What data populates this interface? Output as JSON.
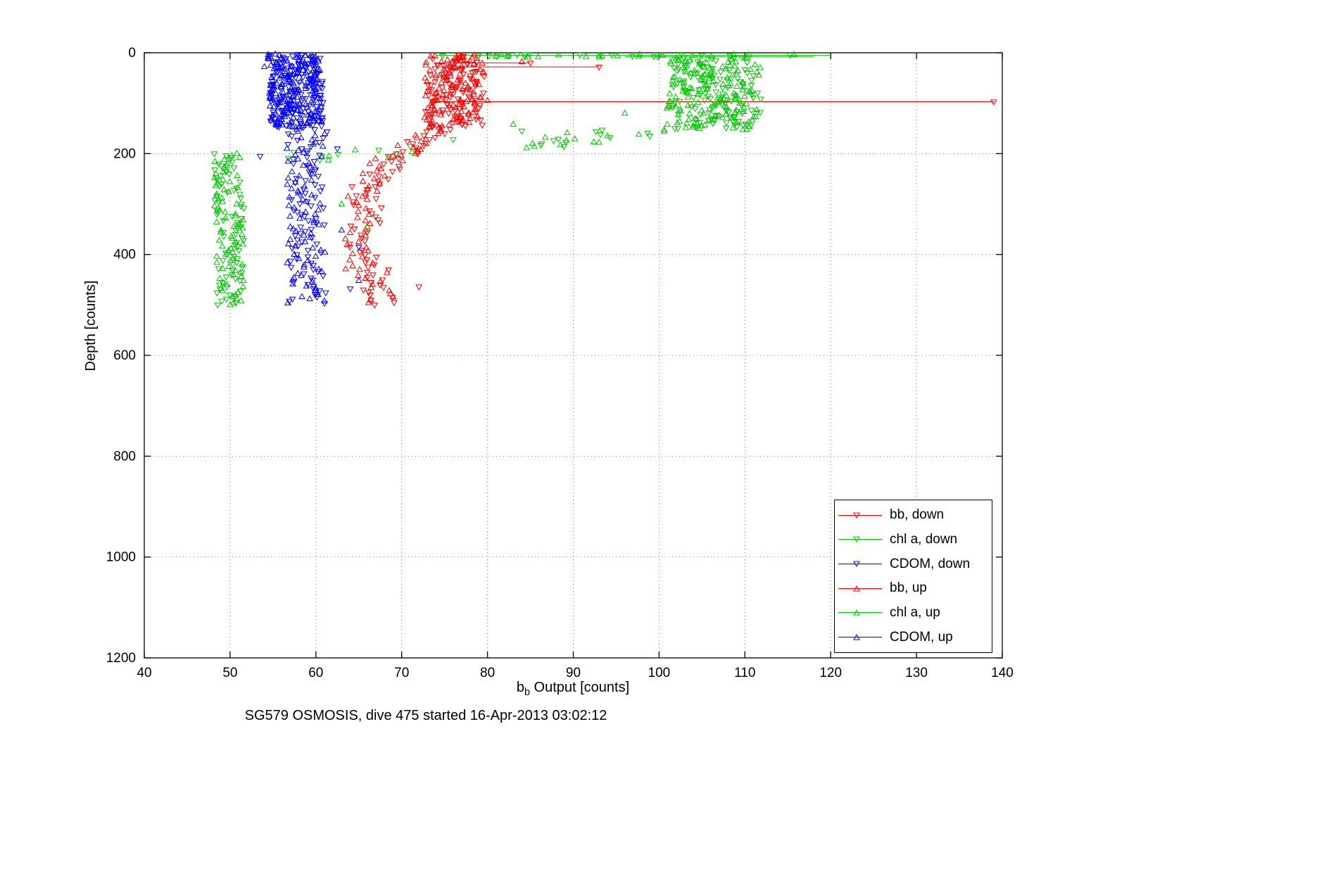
{
  "figure": {
    "title": "SG579 OSMOSIS, dive 475 started 16-Apr-2013 03:02:12",
    "xlabel": {
      "base": "b",
      "sub": "b",
      "rest": " Output [counts]"
    },
    "ylabel": "Depth [counts]",
    "background": "#ffffff"
  },
  "chart_data": {
    "type": "scatter",
    "title": "SG579 OSMOSIS, dive 475 started 16-Apr-2013 03:02:12",
    "xlabel": "b_b Output [counts]",
    "ylabel": "Depth [counts]",
    "xlim": [
      40,
      140
    ],
    "ylim": [
      0,
      1200
    ],
    "y_inverted": true,
    "grid": true,
    "grid_style": "dotted",
    "xticks": [
      40,
      50,
      60,
      70,
      80,
      90,
      100,
      110,
      120,
      130,
      140
    ],
    "yticks": [
      0,
      200,
      400,
      600,
      800,
      1000,
      1200
    ],
    "legend_position": "lower right",
    "series": [
      {
        "name": "bb, down",
        "color": "#ff0000",
        "marker": "down",
        "seed": 11,
        "segments": [
          {
            "d0": 4,
            "d1": 148,
            "step": 1.3,
            "x0": 76.5,
            "x1": 76.0,
            "noise": 3.4
          },
          {
            "d0": 148,
            "d1": 200,
            "step": 4,
            "x0": 74.0,
            "x1": 71.0,
            "noise": 2.0
          },
          {
            "d0": 200,
            "d1": 265,
            "step": 5,
            "x0": 70.0,
            "x1": 66.5,
            "noise": 1.6
          },
          {
            "d0": 265,
            "d1": 395,
            "step": 6,
            "x0": 66.0,
            "x1": 65.5,
            "noise": 1.8
          },
          {
            "d0": 395,
            "d1": 500,
            "step": 5,
            "x0": 66.0,
            "x1": 68.0,
            "noise": 1.9
          }
        ],
        "extras": [
          [
            93,
            28
          ],
          [
            139,
            97
          ],
          [
            85,
            20
          ],
          [
            72,
            464
          ]
        ]
      },
      {
        "name": "chl a, down",
        "color": "#00c400",
        "marker": "down",
        "seed": 22,
        "segments": [
          {
            "d0": 3,
            "d1": 9,
            "step": 0.3,
            "x0": 97.0,
            "x1": 97.0,
            "noise": 23
          },
          {
            "d0": 9,
            "d1": 150,
            "step": 1.1,
            "x0": 107.0,
            "x1": 106.5,
            "noise": 5.2
          },
          {
            "d0": 150,
            "d1": 188,
            "step": 3,
            "x0": 98.0,
            "x1": 88.0,
            "noise": 5
          },
          {
            "d0": 193,
            "d1": 215,
            "step": 4,
            "x0": 64.0,
            "x1": 59.0,
            "noise": 6
          },
          {
            "d0": 200,
            "d1": 500,
            "step": 4,
            "x0": 49.8,
            "x1": 50.2,
            "noise": 1.7
          }
        ],
        "extras": [
          [
            84,
            155
          ],
          [
            76,
            172
          ],
          [
            71,
            186
          ]
        ]
      },
      {
        "name": "CDOM, down",
        "color": "#0000ff",
        "marker": "down",
        "seed": 33,
        "segments": [
          {
            "d0": 3,
            "d1": 148,
            "step": 0.85,
            "x0": 57.6,
            "x1": 57.8,
            "noise": 3.1
          },
          {
            "d0": 148,
            "d1": 500,
            "step": 4.2,
            "x0": 59.0,
            "x1": 59.0,
            "noise": 2.3
          }
        ],
        "extras": [
          [
            65,
            385
          ],
          [
            64,
            468
          ],
          [
            53.5,
            205
          ],
          [
            62.5,
            190
          ]
        ]
      },
      {
        "name": "bb, up",
        "color": "#ff0000",
        "marker": "up",
        "seed": 44,
        "segments": [
          {
            "d0": 5,
            "d1": 148,
            "step": 1.3,
            "x0": 76.2,
            "x1": 75.8,
            "noise": 3.4
          },
          {
            "d0": 148,
            "d1": 205,
            "step": 4,
            "x0": 73.5,
            "x1": 70.0,
            "noise": 2.2
          },
          {
            "d0": 205,
            "d1": 285,
            "step": 5,
            "x0": 68.5,
            "x1": 65.5,
            "noise": 2.0
          },
          {
            "d0": 285,
            "d1": 430,
            "step": 6,
            "x0": 65.0,
            "x1": 65.0,
            "noise": 1.8
          },
          {
            "d0": 430,
            "d1": 500,
            "step": 6,
            "x0": 66.5,
            "x1": 68.0,
            "noise": 2.0
          }
        ],
        "extras": [
          [
            84,
            18
          ],
          [
            80,
            95
          ]
        ]
      },
      {
        "name": "chl a, up",
        "color": "#00c400",
        "marker": "up",
        "seed": 55,
        "segments": [
          {
            "d0": 3,
            "d1": 9,
            "step": 0.3,
            "x0": 100.0,
            "x1": 100.0,
            "noise": 21
          },
          {
            "d0": 9,
            "d1": 153,
            "step": 1.05,
            "x0": 106.5,
            "x1": 106.0,
            "noise": 5.4
          },
          {
            "d0": 153,
            "d1": 190,
            "step": 3,
            "x0": 96.0,
            "x1": 86.0,
            "noise": 6
          },
          {
            "d0": 193,
            "d1": 213,
            "step": 4,
            "x0": 66.0,
            "x1": 61.0,
            "noise": 7
          },
          {
            "d0": 200,
            "d1": 500,
            "step": 4,
            "x0": 49.6,
            "x1": 50.2,
            "noise": 1.7
          }
        ],
        "extras": [
          [
            93,
            178
          ],
          [
            83,
            142
          ],
          [
            66,
            345
          ],
          [
            63,
            300
          ],
          [
            96,
            120
          ]
        ]
      },
      {
        "name": "CDOM, up",
        "color": "#0000ff",
        "marker": "up",
        "seed": 66,
        "segments": [
          {
            "d0": 3,
            "d1": 148,
            "step": 0.85,
            "x0": 57.4,
            "x1": 57.7,
            "noise": 3.0
          },
          {
            "d0": 148,
            "d1": 500,
            "step": 4.2,
            "x0": 58.8,
            "x1": 58.8,
            "noise": 2.3
          }
        ],
        "extras": [
          [
            54,
            28
          ],
          [
            65,
            452
          ],
          [
            63,
            352
          ]
        ]
      }
    ],
    "lines": [
      {
        "color": "#ff0000",
        "d": 97,
        "x0": 73.5,
        "x1": 139
      },
      {
        "color": "#ff0000",
        "d": 28,
        "x0": 74.5,
        "x1": 93
      },
      {
        "color": "#ff0000",
        "d": 20,
        "x0": 74.0,
        "x1": 85
      },
      {
        "color": "#00c400",
        "d": 5,
        "x0": 74.0,
        "x1": 120
      },
      {
        "color": "#00c400",
        "d": 8,
        "x0": 96.0,
        "x1": 118
      }
    ]
  }
}
